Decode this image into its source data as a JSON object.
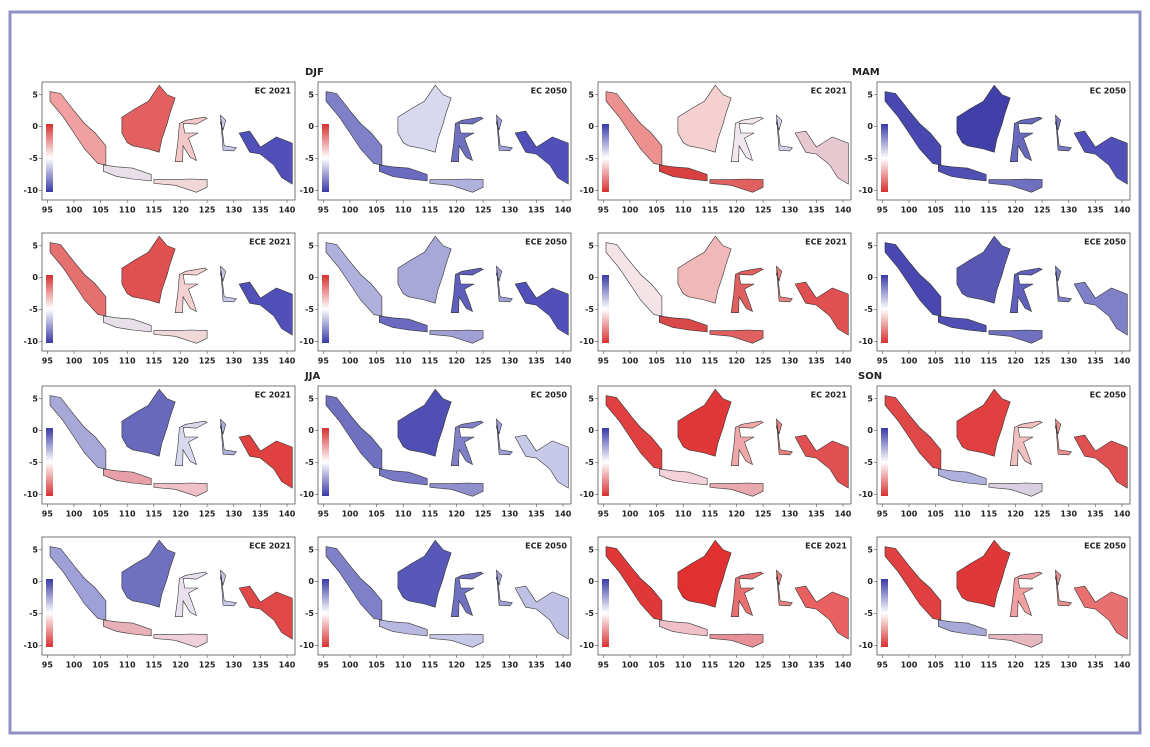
{
  "figure": {
    "groups": [
      {
        "label": "DJF"
      },
      {
        "label": "MAM"
      },
      {
        "label": "JJA"
      },
      {
        "label": "SON"
      }
    ],
    "lon_ticks": [
      95,
      100,
      105,
      110,
      115,
      120,
      125,
      130,
      135,
      140
    ],
    "lat_ticks": [
      5,
      0,
      -5,
      -10
    ],
    "panels": [
      {
        "title": "EC 2021",
        "cbar": [
          "#d73030",
          "#3a3aa8"
        ],
        "colors": [
          "#f0a0a0",
          "#e8e0e8",
          "#f0d8d8",
          "#e26060",
          "#f4c8c8",
          "#5050b8",
          "#c8c8e8"
        ]
      },
      {
        "title": "EC 2050",
        "cbar": [
          "#d73030",
          "#3a3aa8"
        ],
        "colors": [
          "#8080c8",
          "#6a6ac0",
          "#b0b0dc",
          "#d8d8ee",
          "#7070c0",
          "#5050b8",
          "#a0a0d8"
        ]
      },
      {
        "title": "EC 2021",
        "cbar": [
          "#3a3aa8",
          "#d73030"
        ],
        "colors": [
          "#ec9090",
          "#d84040",
          "#e06060",
          "#f4d0d0",
          "#f0e8ee",
          "#e8c8d0",
          "#d8d0e8"
        ]
      },
      {
        "title": "EC 2050",
        "cbar": [
          "#3a3aa8",
          "#d73030"
        ],
        "colors": [
          "#4848b0",
          "#5050b4",
          "#7070c0",
          "#4040a8",
          "#6868bc",
          "#5050b8",
          "#7878c4"
        ]
      },
      {
        "title": "ECE 2021",
        "cbar": [
          "#d73030",
          "#3a3aa8"
        ],
        "colors": [
          "#e47070",
          "#e8e0e8",
          "#f0d8d8",
          "#e05050",
          "#f4d0d0",
          "#5050b8",
          "#c8c8e8"
        ]
      },
      {
        "title": "ECE 2050",
        "cbar": [
          "#d73030",
          "#3a3aa8"
        ],
        "colors": [
          "#b0b0dc",
          "#6a6ac0",
          "#a0a0d4",
          "#a8a8d8",
          "#6060bc",
          "#5050b8",
          "#a0a0d8"
        ]
      },
      {
        "title": "ECE 2021",
        "cbar": [
          "#3a3aa8",
          "#d73030"
        ],
        "colors": [
          "#f4e4e8",
          "#d84848",
          "#e06060",
          "#f0b8b8",
          "#e06060",
          "#e05050",
          "#e88080"
        ]
      },
      {
        "title": "ECE 2050",
        "cbar": [
          "#3a3aa8",
          "#d73030"
        ],
        "colors": [
          "#4848b0",
          "#5050b4",
          "#7070c0",
          "#5858b4",
          "#6060bc",
          "#8080c8",
          "#8080c8"
        ]
      },
      {
        "title": "EC 2021",
        "cbar": [
          "#3a3aa8",
          "#d73030"
        ],
        "colors": [
          "#a8a8d8",
          "#e8a0a8",
          "#f0c0c8",
          "#6868bc",
          "#d8d8ee",
          "#e04040",
          "#b0b0dc"
        ]
      },
      {
        "title": "EC 2050",
        "cbar": [
          "#d73030",
          "#3a3aa8"
        ],
        "colors": [
          "#7070c0",
          "#7878c4",
          "#9090cc",
          "#5050b4",
          "#8080c8",
          "#c8c8e8",
          "#a0a0d8"
        ]
      },
      {
        "title": "EC 2021",
        "cbar": [
          "#3a3aa8",
          "#d73030"
        ],
        "colors": [
          "#e04040",
          "#f4d0d8",
          "#e8a8b0",
          "#e03838",
          "#f0a8a8",
          "#e05050",
          "#e88080"
        ]
      },
      {
        "title": "EC 2050",
        "cbar": [
          "#3a3aa8",
          "#d73030"
        ],
        "colors": [
          "#e04848",
          "#b0b0dc",
          "#d8d0e0",
          "#e04040",
          "#f0c0c0",
          "#e05050",
          "#e89090"
        ]
      },
      {
        "title": "ECE 2021",
        "cbar": [
          "#3a3aa8",
          "#d73030"
        ],
        "colors": [
          "#a0a0d8",
          "#e8b0b8",
          "#f0d0d8",
          "#7070c0",
          "#e8e0ee",
          "#e04848",
          "#c8c8e8"
        ]
      },
      {
        "title": "ECE 2050",
        "cbar": [
          "#3a3aa8",
          "#d73030"
        ],
        "colors": [
          "#8080c8",
          "#b8b8e0",
          "#c8c8e8",
          "#5858b8",
          "#7070c0",
          "#c0c0e4",
          "#a0a0d8"
        ]
      },
      {
        "title": "ECE 2021",
        "cbar": [
          "#3a3aa8",
          "#d73030"
        ],
        "colors": [
          "#e03838",
          "#f0c0c8",
          "#e89098",
          "#e03030",
          "#e87070",
          "#e86060",
          "#e88080"
        ]
      },
      {
        "title": "ECE 2050",
        "cbar": [
          "#3a3aa8",
          "#d73030"
        ],
        "colors": [
          "#e04040",
          "#a8a8d8",
          "#e8b8c0",
          "#e03838",
          "#f0a0a0",
          "#e87070",
          "#e89090"
        ]
      }
    ]
  }
}
